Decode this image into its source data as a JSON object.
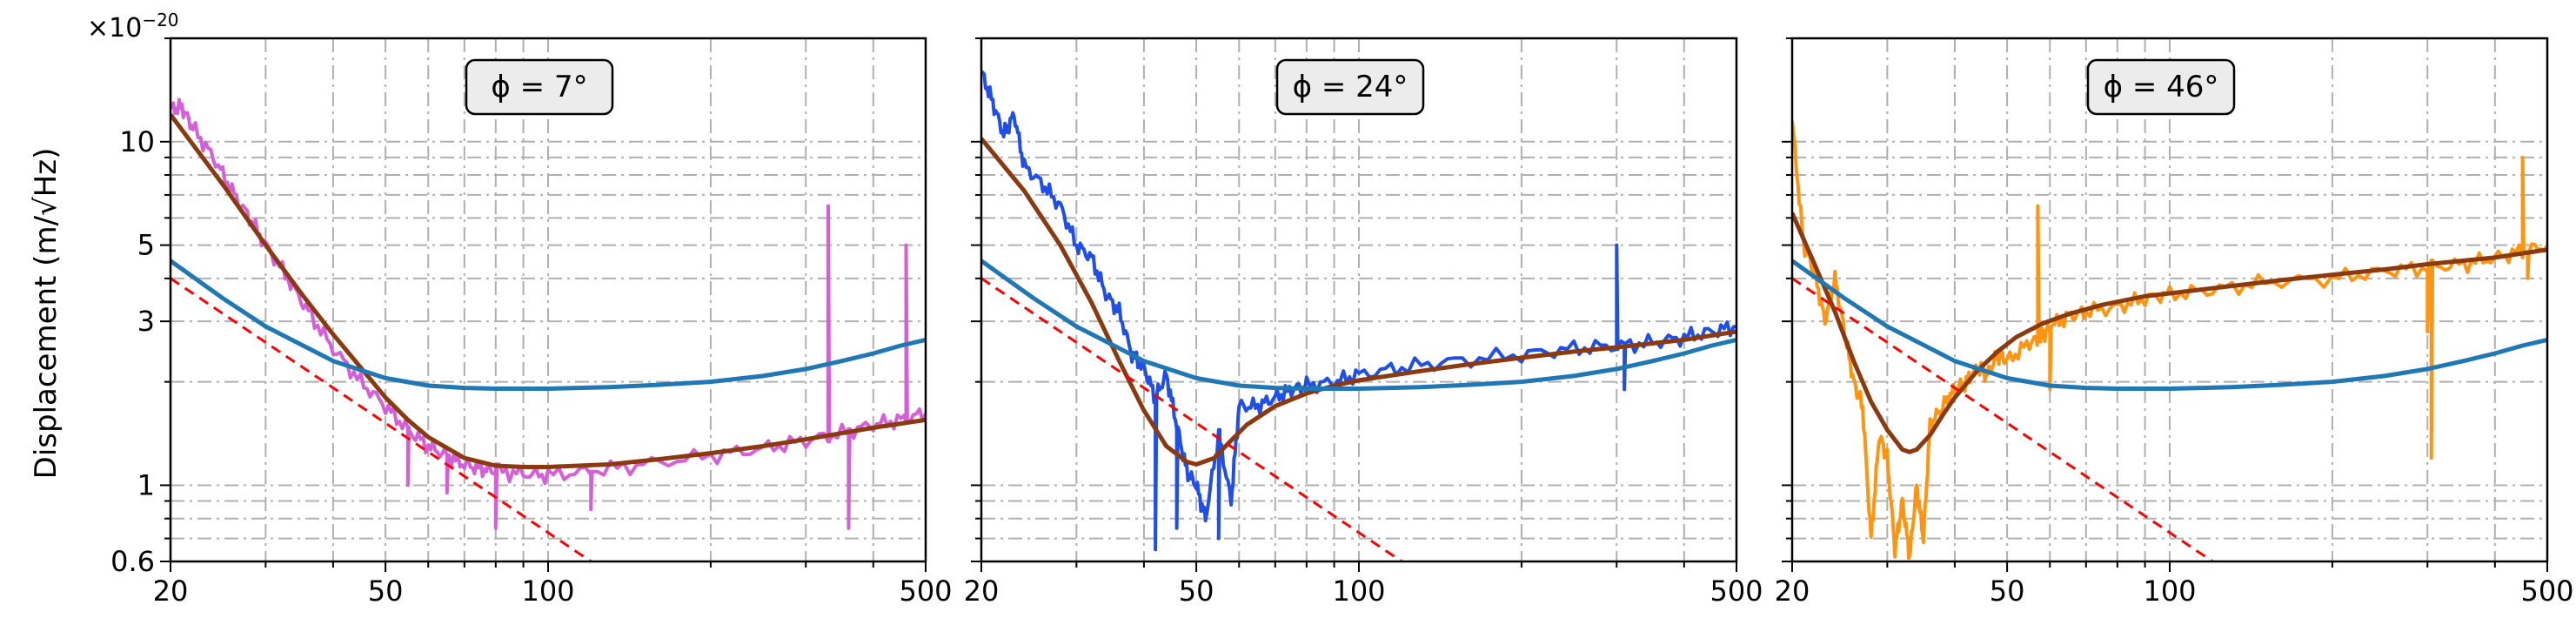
{
  "figure": {
    "scale_label": "×10",
    "scale_exponent": "−20",
    "ylabel": "Displacement (m/√Hz)"
  },
  "chart_data": [
    {
      "type": "line",
      "annotation": "ϕ = 7°",
      "xscale": "log",
      "yscale": "log",
      "xlim": [
        20,
        500
      ],
      "ylim": [
        0.6,
        20
      ],
      "xticks": [
        20,
        50,
        100,
        500
      ],
      "yticks": [
        0.6,
        1,
        3,
        5,
        10
      ],
      "grid": true,
      "series": [
        {
          "role": "measured",
          "color": "#d45fd8",
          "x": [
            20,
            21,
            22,
            24,
            26,
            28,
            30,
            33,
            36,
            40,
            45,
            50,
            55,
            60,
            65,
            70,
            75,
            80,
            90,
            100,
            120,
            150,
            200,
            250,
            300,
            350,
            400,
            450,
            500
          ],
          "y": [
            12.5,
            12.6,
            11.0,
            9.0,
            7.2,
            6.0,
            5.0,
            4.0,
            3.2,
            2.5,
            2.0,
            1.7,
            1.45,
            1.3,
            1.22,
            1.15,
            1.12,
            1.1,
            1.08,
            1.07,
            1.1,
            1.15,
            1.22,
            1.28,
            1.35,
            1.42,
            1.5,
            1.55,
            1.62
          ],
          "spikes": [
            [
              55,
              1.0
            ],
            [
              65,
              0.95
            ],
            [
              80,
              0.75
            ],
            [
              120,
              0.85
            ],
            [
              330,
              6.5
            ],
            [
              360,
              0.75
            ],
            [
              460,
              5.0
            ]
          ]
        },
        {
          "role": "fit",
          "color": "#8b3a0f",
          "x": [
            20,
            25,
            30,
            35,
            40,
            45,
            50,
            55,
            60,
            70,
            80,
            90,
            100,
            130,
            160,
            200,
            250,
            300,
            400,
            500
          ],
          "y": [
            12.0,
            7.5,
            5.0,
            3.6,
            2.75,
            2.2,
            1.8,
            1.55,
            1.38,
            1.2,
            1.14,
            1.13,
            1.13,
            1.15,
            1.19,
            1.24,
            1.3,
            1.36,
            1.47,
            1.55
          ]
        },
        {
          "role": "model",
          "color": "#1f77b4",
          "x": [
            20,
            25,
            30,
            40,
            50,
            60,
            70,
            80,
            100,
            130,
            160,
            200,
            250,
            300,
            350,
            400,
            450,
            500
          ],
          "y": [
            4.5,
            3.5,
            2.9,
            2.3,
            2.05,
            1.95,
            1.92,
            1.91,
            1.91,
            1.93,
            1.96,
            2.0,
            2.08,
            2.18,
            2.3,
            2.42,
            2.55,
            2.65
          ]
        },
        {
          "role": "asymptote",
          "color": "#ff0000",
          "style": "dashed",
          "x": [
            20,
            120
          ],
          "y": [
            4.0,
            0.6
          ]
        }
      ]
    },
    {
      "type": "line",
      "annotation": "ϕ = 24°",
      "xscale": "log",
      "yscale": "log",
      "xlim": [
        20,
        500
      ],
      "ylim": [
        0.6,
        20
      ],
      "xticks": [
        20,
        50,
        100,
        500
      ],
      "yticks": [
        0.6,
        1,
        3,
        5,
        10
      ],
      "grid": true,
      "series": [
        {
          "role": "measured",
          "color": "#1f4fe8",
          "x": [
            20,
            21,
            22,
            23,
            24,
            26,
            28,
            30,
            32,
            34,
            36,
            38,
            40,
            42,
            44,
            46,
            48,
            50,
            52,
            55,
            58,
            60,
            65,
            70,
            75,
            80,
            90,
            100,
            120,
            150,
            200,
            250,
            300,
            350,
            400,
            450,
            500
          ],
          "y": [
            16,
            13,
            10.5,
            12,
            8.5,
            7.5,
            6.5,
            5.0,
            4.6,
            3.6,
            3.2,
            2.4,
            2.2,
            1.8,
            2.1,
            1.5,
            1.1,
            1.0,
            0.8,
            1.4,
            0.9,
            1.7,
            1.7,
            1.8,
            1.9,
            1.95,
            2.0,
            2.1,
            2.2,
            2.3,
            2.4,
            2.5,
            2.55,
            2.6,
            2.7,
            2.8,
            2.9
          ],
          "spikes": [
            [
              42,
              0.65
            ],
            [
              46,
              0.75
            ],
            [
              55,
              0.7
            ],
            [
              300,
              5.0
            ],
            [
              310,
              1.9
            ]
          ]
        },
        {
          "role": "fit",
          "color": "#8b3a0f",
          "x": [
            20,
            24,
            28,
            32,
            36,
            40,
            44,
            48,
            50,
            54,
            58,
            62,
            70,
            80,
            90,
            100,
            130,
            160,
            200,
            250,
            300,
            400,
            500
          ],
          "y": [
            10.2,
            7.2,
            5.0,
            3.4,
            2.3,
            1.65,
            1.3,
            1.17,
            1.15,
            1.2,
            1.35,
            1.5,
            1.7,
            1.85,
            1.95,
            2.02,
            2.15,
            2.25,
            2.35,
            2.45,
            2.52,
            2.65,
            2.8
          ]
        },
        {
          "role": "model",
          "color": "#1f77b4",
          "x": [
            20,
            25,
            30,
            40,
            50,
            60,
            70,
            80,
            100,
            130,
            160,
            200,
            250,
            300,
            350,
            400,
            450,
            500
          ],
          "y": [
            4.5,
            3.5,
            2.9,
            2.3,
            2.05,
            1.95,
            1.92,
            1.91,
            1.91,
            1.93,
            1.96,
            2.0,
            2.08,
            2.18,
            2.3,
            2.42,
            2.55,
            2.65
          ]
        },
        {
          "role": "asymptote",
          "color": "#ff0000",
          "style": "dashed",
          "x": [
            20,
            120
          ],
          "y": [
            4.0,
            0.6
          ]
        }
      ]
    },
    {
      "type": "line",
      "annotation": "ϕ = 46°",
      "xscale": "log",
      "yscale": "log",
      "xlim": [
        20,
        500
      ],
      "ylim": [
        0.6,
        20
      ],
      "xticks": [
        20,
        50,
        500
      ],
      "xticklabels_extra": [
        100
      ],
      "yticks": [
        0.6,
        1,
        3,
        5,
        10
      ],
      "grid": true,
      "series": [
        {
          "role": "measured",
          "color": "#ff9410",
          "x": [
            20,
            21,
            22,
            23,
            24,
            25,
            26,
            27,
            28,
            29,
            30,
            31,
            32,
            33,
            34,
            35,
            36,
            38,
            40,
            42,
            44,
            46,
            48,
            50,
            55,
            58,
            60,
            65,
            70,
            80,
            90,
            100,
            120,
            150,
            200,
            250,
            300,
            350,
            400,
            450,
            500
          ],
          "y": [
            11.5,
            5.0,
            4.2,
            3.0,
            4.0,
            2.8,
            2.0,
            1.7,
            0.7,
            1.4,
            1.2,
            0.65,
            0.9,
            0.62,
            1.0,
            0.7,
            1.5,
            1.7,
            1.9,
            2.0,
            2.2,
            2.1,
            2.4,
            2.3,
            2.6,
            2.7,
            2.9,
            3.1,
            3.2,
            3.3,
            3.5,
            3.6,
            3.7,
            3.9,
            4.0,
            4.2,
            4.3,
            4.4,
            4.6,
            4.8,
            5.0
          ],
          "spikes": [
            [
              57,
              6.5
            ],
            [
              60,
              1.9
            ],
            [
              300,
              2.8
            ],
            [
              305,
              1.2
            ],
            [
              450,
              9.0
            ],
            [
              460,
              4.0
            ]
          ]
        },
        {
          "role": "fit",
          "color": "#8b3a0f",
          "x": [
            20,
            22,
            24,
            26,
            28,
            30,
            32,
            33,
            34,
            36,
            38,
            40,
            44,
            48,
            52,
            58,
            65,
            75,
            90,
            100,
            130,
            160,
            200,
            250,
            300,
            400,
            500
          ],
          "y": [
            6.2,
            4.4,
            3.2,
            2.3,
            1.75,
            1.45,
            1.27,
            1.25,
            1.27,
            1.4,
            1.6,
            1.8,
            2.15,
            2.45,
            2.7,
            2.95,
            3.15,
            3.35,
            3.55,
            3.62,
            3.8,
            3.95,
            4.1,
            4.25,
            4.4,
            4.6,
            4.85
          ]
        },
        {
          "role": "model",
          "color": "#1f77b4",
          "x": [
            20,
            25,
            30,
            40,
            50,
            60,
            70,
            80,
            100,
            130,
            160,
            200,
            250,
            300,
            350,
            400,
            450,
            500
          ],
          "y": [
            4.5,
            3.5,
            2.9,
            2.3,
            2.05,
            1.95,
            1.92,
            1.91,
            1.91,
            1.93,
            1.96,
            2.0,
            2.08,
            2.18,
            2.3,
            2.42,
            2.55,
            2.65
          ]
        },
        {
          "role": "asymptote",
          "color": "#ff0000",
          "style": "dashed",
          "x": [
            20,
            120
          ],
          "y": [
            4.0,
            0.6
          ]
        }
      ]
    }
  ]
}
